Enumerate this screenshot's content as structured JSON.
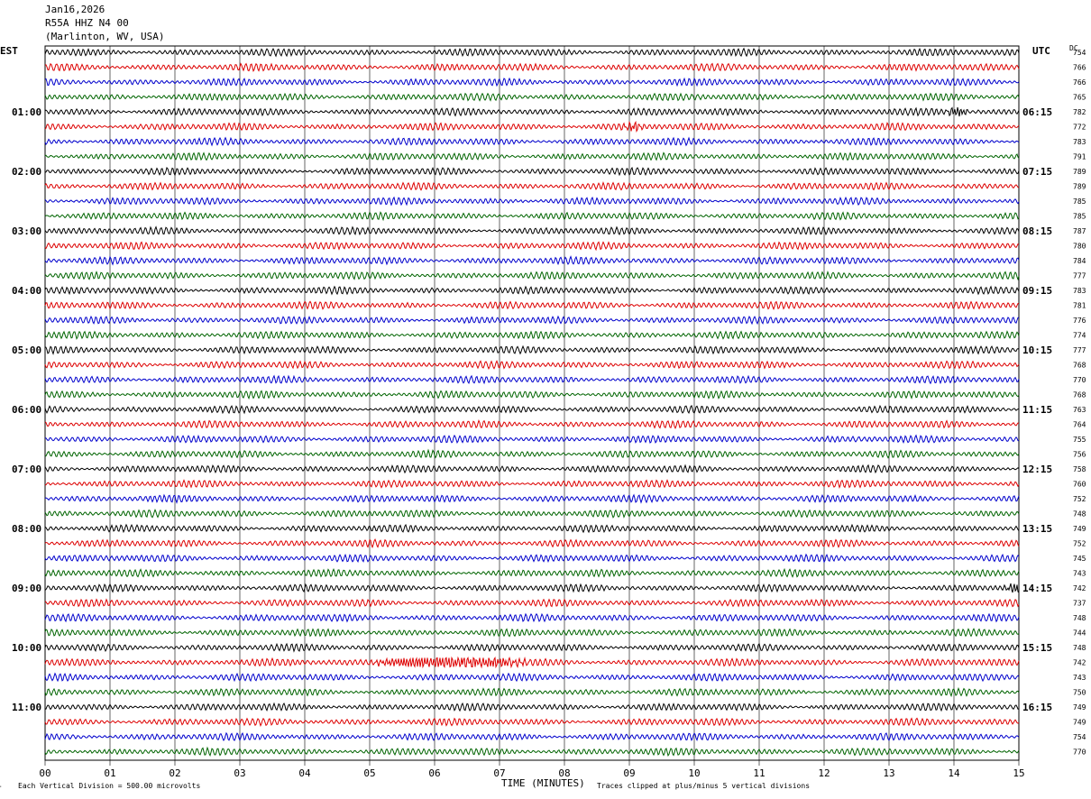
{
  "header": {
    "date": "Jan16,2026",
    "station": "R55A HHZ N4 00",
    "location": "(Marlinton, WV, USA)"
  },
  "left_timezone": "EST",
  "right_timezone": "UTC",
  "dc_label": "DC",
  "footer": {
    "scale_note": "Each Vertical Division =  500.00 microvolts",
    "xlabel": "TIME (MINUTES)",
    "clip_note": "Traces clipped at plus/minus 5 vertical divisions",
    "corner_mark": "ⷨ"
  },
  "colors": {
    "black": "#000000",
    "red": "#dd0000",
    "blue": "#0000cc",
    "green": "#006400",
    "grid": "#000000"
  },
  "chart_data": {
    "type": "line",
    "title": "",
    "xlabel": "TIME (MINUTES)",
    "xlim": [
      0,
      15
    ],
    "x_ticks": [
      "00",
      "01",
      "02",
      "03",
      "04",
      "05",
      "06",
      "07",
      "08",
      "09",
      "10",
      "11",
      "12",
      "13",
      "14",
      "15"
    ],
    "trace_color_cycle": [
      "black",
      "red",
      "blue",
      "green"
    ],
    "traces_per_hour": 4,
    "trace_count": 48,
    "left_hour_labels": [
      "01:00",
      "02:00",
      "03:00",
      "04:00",
      "05:00",
      "06:00",
      "07:00",
      "08:00",
      "09:00",
      "10:00",
      "11:00"
    ],
    "right_hour_labels": [
      "06:15",
      "07:15",
      "08:15",
      "09:15",
      "10:15",
      "11:15",
      "12:15",
      "13:15",
      "14:15",
      "15:15",
      "16:15"
    ],
    "dc_offsets": [
      754,
      766,
      766,
      765,
      782,
      772,
      783,
      791,
      789,
      789,
      785,
      785,
      787,
      780,
      784,
      777,
      783,
      781,
      776,
      774,
      777,
      768,
      770,
      768,
      763,
      764,
      755,
      756,
      758,
      760,
      752,
      748,
      749,
      752,
      745,
      743,
      742,
      737,
      748,
      744,
      748,
      742,
      743,
      750,
      749,
      749,
      754,
      770
    ],
    "events": [
      {
        "trace": 4,
        "minute": 14.05,
        "amplitude": "small spike"
      },
      {
        "trace": 5,
        "minute": 9.05,
        "amplitude": "small wave"
      },
      {
        "trace": 36,
        "minute": 14.95,
        "amplitude": "small spike"
      },
      {
        "trace": 41,
        "start_minute": 5.0,
        "end_minute": 7.5,
        "amplitude": "large burst"
      }
    ]
  }
}
